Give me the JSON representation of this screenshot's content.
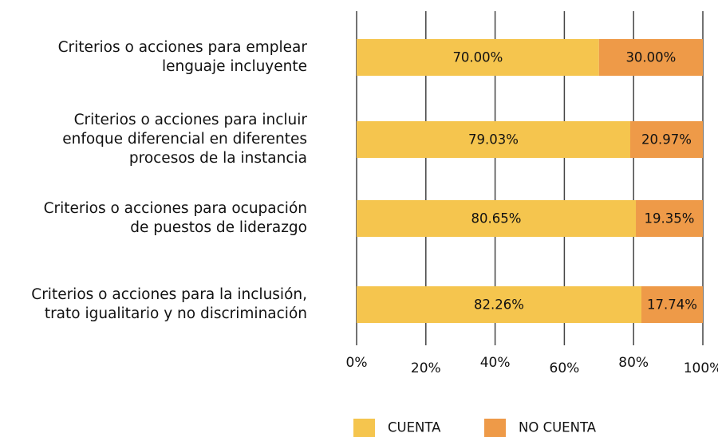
{
  "chart_data": {
    "type": "stacked_barh",
    "categories": [
      "Criterios o acciones para emplear\nlenguaje incluyente",
      "Criterios o acciones para incluir\nenfoque diferencial en diferentes\nprocesos de la instancia",
      "Criterios o acciones para ocupación\nde puestos de liderazgo",
      "Criterios o acciones para la inclusión,\ntrato igualitario y no discriminación"
    ],
    "series": [
      {
        "name": "CUENTA",
        "color": "#f5c54e",
        "values": [
          70.0,
          79.03,
          80.65,
          82.26
        ],
        "value_labels": [
          "70.00%",
          "79.03%",
          "80.65%",
          "82.26%"
        ]
      },
      {
        "name": "NO CUENTA",
        "color": "#ee9a48",
        "values": [
          30.0,
          20.97,
          19.35,
          17.74
        ],
        "value_labels": [
          "30.00%",
          "20.97%",
          "19.35%",
          "17.74%"
        ]
      }
    ],
    "xlim": [
      0,
      100
    ],
    "xticks": [
      {
        "value": 0,
        "label": "0%"
      },
      {
        "value": 20,
        "label": "20%"
      },
      {
        "value": 40,
        "label": "40%"
      },
      {
        "value": 60,
        "label": "60%"
      },
      {
        "value": 80,
        "label": "80%"
      },
      {
        "value": 100,
        "label": "100%"
      }
    ],
    "grid": true,
    "legend": "bottom"
  }
}
